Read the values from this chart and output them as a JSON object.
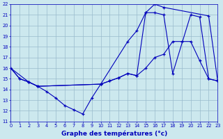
{
  "title": "Graphe des températures (°c)",
  "bg_color": "#cce8ee",
  "line_color": "#0000bb",
  "grid_color": "#99bbcc",
  "xlim": [
    0,
    23
  ],
  "ylim": [
    11,
    22
  ],
  "xticks": [
    0,
    1,
    2,
    3,
    4,
    5,
    6,
    7,
    8,
    9,
    10,
    11,
    12,
    13,
    14,
    15,
    16,
    17,
    18,
    19,
    20,
    21,
    22,
    23
  ],
  "yticks": [
    11,
    12,
    13,
    14,
    15,
    16,
    17,
    18,
    19,
    20,
    21,
    22
  ],
  "series1_x": [
    0,
    1,
    2,
    3,
    4,
    5,
    6,
    7,
    8,
    9,
    10,
    11,
    12,
    13,
    14,
    15,
    16,
    17,
    18,
    19,
    20,
    21,
    22,
    23
  ],
  "series1_y": [
    16,
    15,
    14.7,
    14.3,
    13.8,
    13.2,
    12.5,
    12.1,
    11.7,
    13.2,
    14.5,
    14.8,
    15.1,
    15.5,
    15.3,
    16.0,
    17.0,
    17.3,
    18.5,
    18.5,
    18.5,
    16.7,
    15.0,
    14.8
  ],
  "series2_x": [
    0,
    1,
    2,
    3,
    10,
    11,
    12,
    13,
    14,
    15,
    16,
    17,
    18,
    20,
    21,
    22,
    23
  ],
  "series2_y": [
    16,
    15,
    14.7,
    14.3,
    14.5,
    14.8,
    15.1,
    15.5,
    15.3,
    21.2,
    21.2,
    21.0,
    15.5,
    21.0,
    20.8,
    15.0,
    14.8
  ],
  "series3_x": [
    0,
    2,
    3,
    10,
    13,
    14,
    15,
    16,
    17,
    22,
    23
  ],
  "series3_y": [
    16,
    14.7,
    14.3,
    14.5,
    18.5,
    19.5,
    21.2,
    22.0,
    21.7,
    20.9,
    14.8
  ]
}
